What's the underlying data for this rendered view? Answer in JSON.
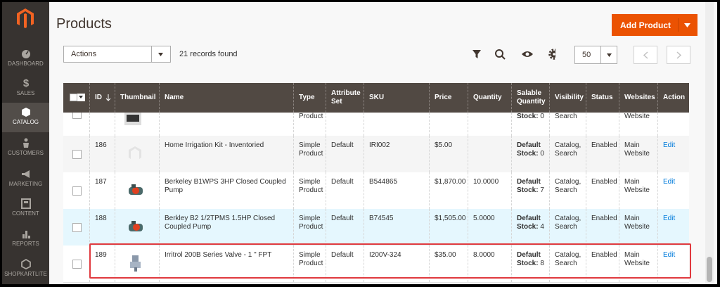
{
  "sidebar": {
    "items": [
      "DASHBOARD",
      "SALES",
      "CATALOG",
      "CUSTOMERS",
      "MARKETING",
      "CONTENT",
      "REPORTS",
      "SHOPKARTLITE"
    ]
  },
  "header": {
    "title": "Products",
    "button": "Add Product"
  },
  "toolbar": {
    "actions": "Actions",
    "records": "21 records found",
    "per_page": "50"
  },
  "table": {
    "columns": [
      "ID",
      "Thumbnail",
      "Name",
      "Type",
      "Attribute Set",
      "SKU",
      "Price",
      "Quantity",
      "Salable Quantity",
      "Visibility",
      "Status",
      "Websites",
      "Action"
    ],
    "partial_row": {
      "type": "Product",
      "salable_label": "Stock:",
      "salable_qty": "0",
      "visibility": "Search",
      "websites": "Website"
    },
    "rows": [
      {
        "id": "186",
        "name": "Home Irrigation Kit - Inventoried",
        "type": "Simple Product",
        "attribute_set": "Default",
        "sku": "IRI002",
        "price": "$5.00",
        "salable_label": "Default Stock:",
        "salable_qty": "0",
        "visibility": "Catalog, Search",
        "status": "Enabled",
        "websites": "Main Website",
        "action": "Edit"
      },
      {
        "id": "187",
        "name": "Berkeley B1WPS 3HP Closed Coupled Pump",
        "type": "Simple Product",
        "attribute_set": "Default",
        "sku": "B544865",
        "price": "$1,870.00",
        "quantity": "10.0000",
        "salable_label": "Default Stock:",
        "salable_qty": "7",
        "visibility": "Catalog, Search",
        "status": "Enabled",
        "websites": "Main Website",
        "action": "Edit"
      },
      {
        "id": "188",
        "name": "Berkley B2 1/2TPMS 1.5HP Closed Coupled Pump",
        "type": "Simple Product",
        "attribute_set": "Default",
        "sku": "B74545",
        "price": "$1,505.00",
        "quantity": "5.0000",
        "salable_label": "Default Stock:",
        "salable_qty": "4",
        "visibility": "Catalog, Search",
        "status": "Enabled",
        "websites": "Main Website",
        "action": "Edit"
      },
      {
        "id": "189",
        "name": "Irritrol 200B Series Valve - 1 \" FPT",
        "type": "Simple Product",
        "attribute_set": "Default",
        "sku": "I200V-324",
        "price": "$35.00",
        "quantity": "8.0000",
        "salable_label": "Default Stock:",
        "salable_qty": "8",
        "visibility": "Catalog, Search",
        "status": "Enabled",
        "websites": "Main Website",
        "action": "Edit"
      }
    ]
  }
}
